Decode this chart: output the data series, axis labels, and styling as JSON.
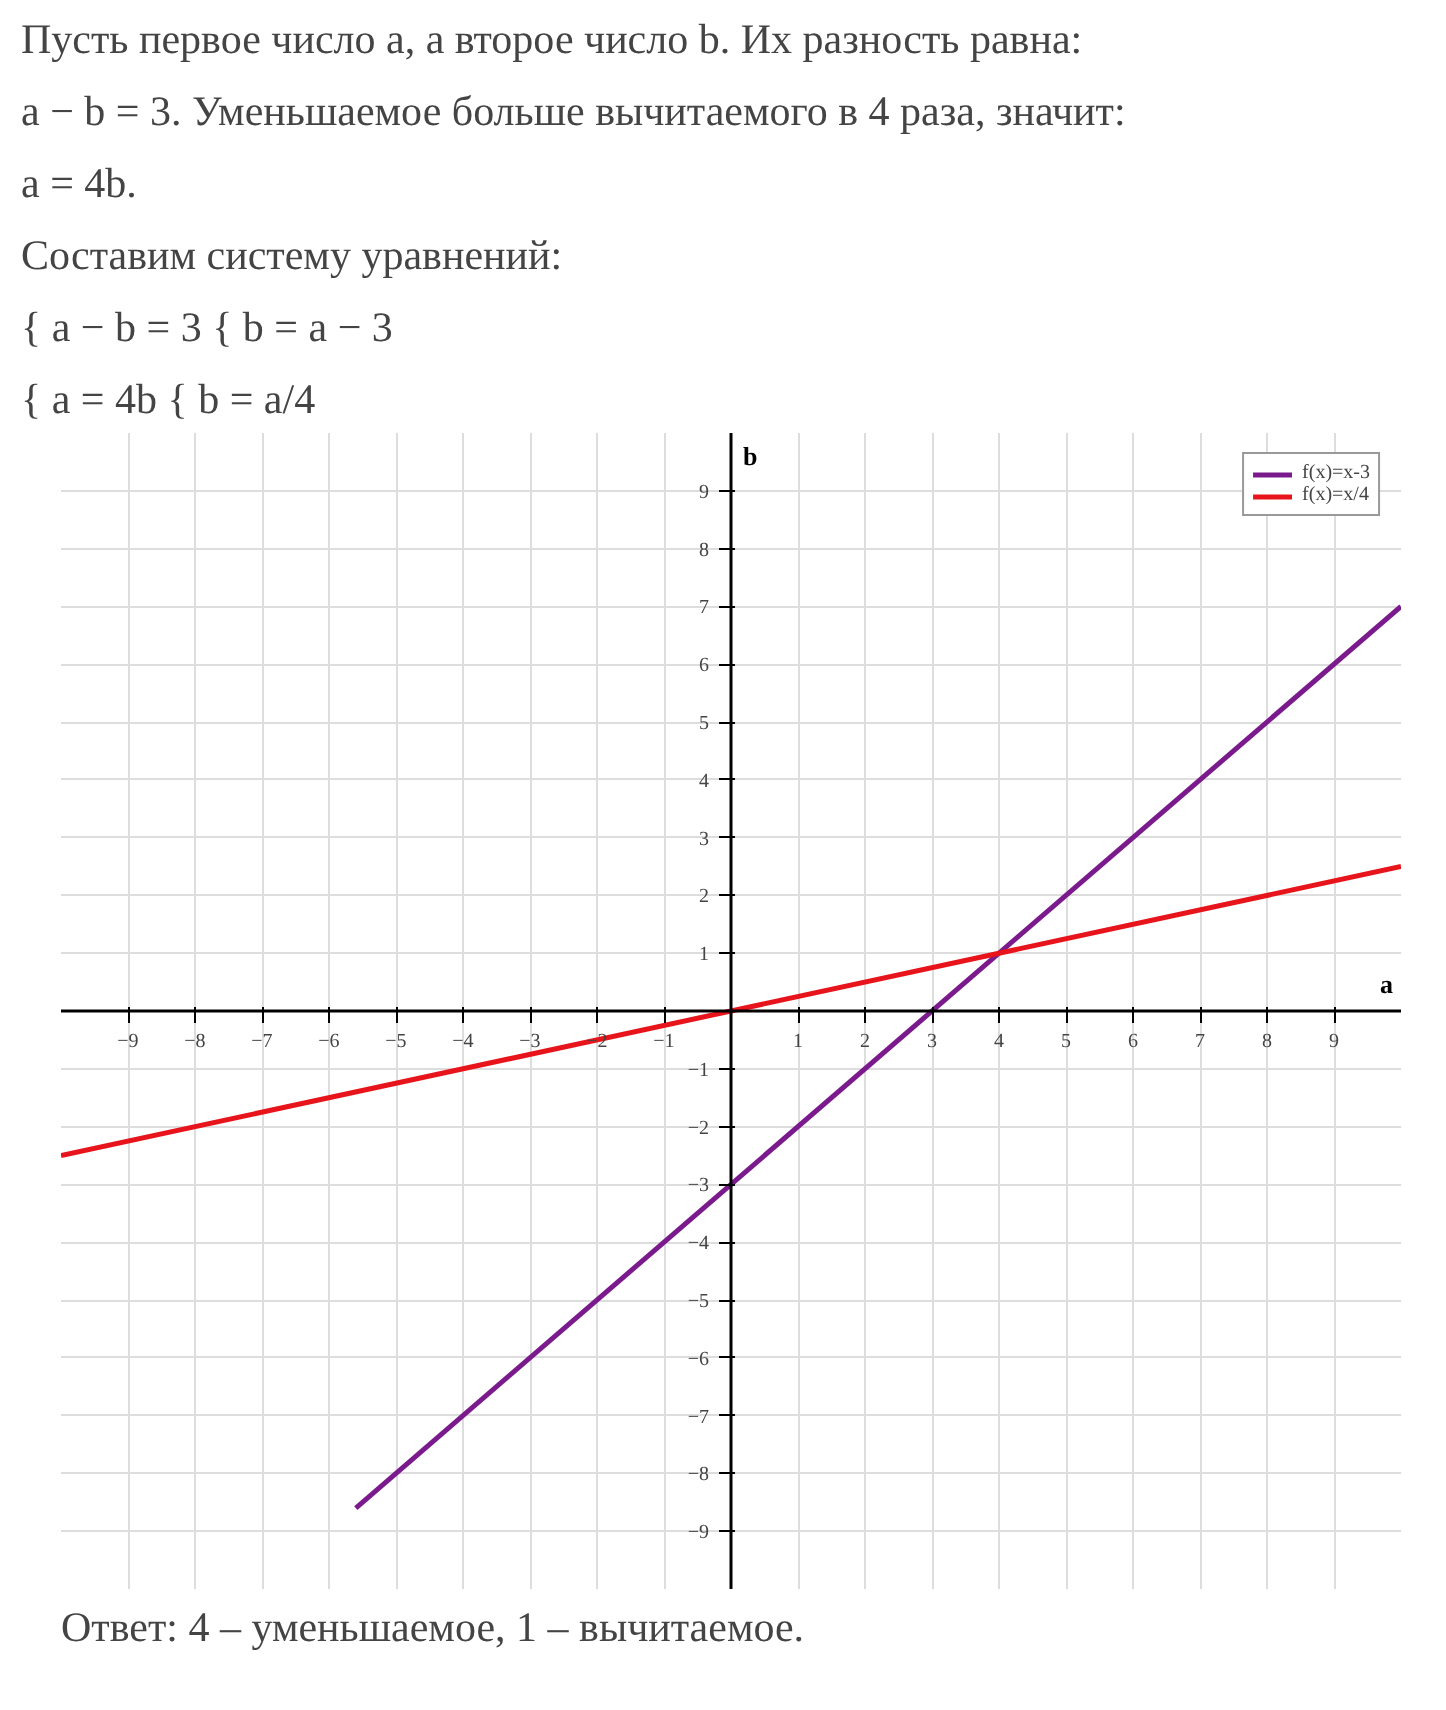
{
  "chart_data": {
    "type": "line",
    "annotations": [
      "Пусть первое число a, а второе число b. Их разность равна:",
      "a − b = 3. Уменьшаемое больше вычитаемого в 4 раза, значит:",
      "a = 4b.",
      "Составим систему уравнений:",
      "{ a − b = 3        { b = a − 3",
      "{ a = 4b             { b = a/4",
      "Ответ: 4 – уменьшаемое, 1 – вычитаемое."
    ],
    "xlabel": "a",
    "ylabel": "b",
    "series": [
      {
        "name": "f(x)=x-3",
        "color": "#7b1a8c",
        "x": [
          -5.6,
          10
        ],
        "values": [
          -8.6,
          7
        ]
      },
      {
        "name": "f(x)=x/4",
        "color": "#e8141b",
        "x": [
          -10,
          10
        ],
        "values": [
          -2.5,
          2.5
        ]
      }
    ],
    "xlim": [
      -10,
      10
    ],
    "ylim": [
      -10,
      10
    ],
    "xticks": [
      -9,
      -8,
      -7,
      -6,
      -5,
      -4,
      -3,
      -2,
      -1,
      1,
      2,
      3,
      4,
      5,
      6,
      7,
      8,
      9
    ],
    "yticks": [
      -9,
      -8,
      -7,
      -6,
      -5,
      -4,
      -3,
      -2,
      -1,
      1,
      2,
      3,
      4,
      5,
      6,
      7,
      8,
      9
    ],
    "grid": true,
    "legend": "top right",
    "line_style": "solid",
    "marker": "none"
  }
}
